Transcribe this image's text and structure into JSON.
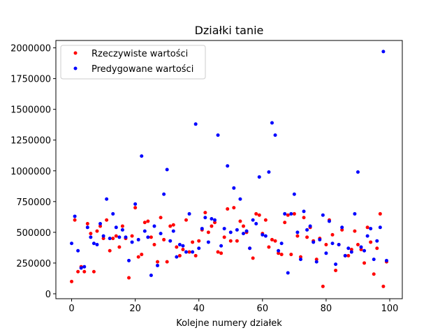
{
  "chart_data": {
    "type": "scatter",
    "title": "Działki tanie",
    "xlabel": "Kolejne numery działek",
    "ylabel": "",
    "xlim": [
      -4.95,
      103.95
    ],
    "ylim": [
      -40000,
      2060000
    ],
    "xticks": [
      0,
      20,
      40,
      60,
      80,
      100
    ],
    "yticks": [
      0,
      250000,
      500000,
      750000,
      1000000,
      1250000,
      1500000,
      1750000,
      2000000
    ],
    "legend_position": "top-left",
    "grid": false,
    "series": [
      {
        "name": "Rzeczywiste wartości",
        "color": "#ff0000",
        "x": [
          0,
          1,
          2,
          3,
          4,
          5,
          6,
          7,
          8,
          9,
          10,
          11,
          12,
          13,
          14,
          15,
          16,
          17,
          18,
          19,
          20,
          21,
          22,
          23,
          24,
          25,
          26,
          27,
          28,
          29,
          30,
          31,
          32,
          33,
          34,
          35,
          36,
          37,
          38,
          39,
          40,
          41,
          42,
          43,
          44,
          45,
          46,
          47,
          48,
          49,
          50,
          51,
          52,
          53,
          54,
          55,
          56,
          57,
          58,
          59,
          60,
          61,
          62,
          63,
          64,
          65,
          66,
          67,
          68,
          69,
          70,
          71,
          72,
          73,
          74,
          75,
          76,
          77,
          78,
          79,
          80,
          81,
          82,
          83,
          84,
          85,
          86,
          87,
          88,
          89,
          90,
          91,
          92,
          93,
          94,
          95,
          96,
          97,
          98,
          99
        ],
        "y": [
          100000,
          600000,
          180000,
          220000,
          180000,
          570000,
          490000,
          180000,
          510000,
          550000,
          450000,
          600000,
          350000,
          450000,
          470000,
          380000,
          550000,
          450000,
          130000,
          470000,
          700000,
          300000,
          320000,
          580000,
          590000,
          460000,
          400000,
          260000,
          620000,
          440000,
          260000,
          550000,
          560000,
          380000,
          310000,
          360000,
          600000,
          340000,
          420000,
          310000,
          430000,
          520000,
          660000,
          500000,
          550000,
          580000,
          340000,
          330000,
          460000,
          690000,
          430000,
          700000,
          430000,
          590000,
          550000,
          500000,
          370000,
          290000,
          650000,
          640000,
          490000,
          600000,
          380000,
          440000,
          430000,
          330000,
          320000,
          580000,
          640000,
          320000,
          650000,
          470000,
          300000,
          620000,
          460000,
          540000,
          430000,
          280000,
          450000,
          60000,
          400000,
          600000,
          480000,
          190000,
          400000,
          520000,
          310000,
          310000,
          360000,
          510000,
          400000,
          360000,
          250000,
          540000,
          420000,
          160000,
          370000,
          650000,
          60000,
          260000
        ]
      },
      {
        "name": "Predygowane wartości",
        "color": "#0000ff",
        "x": [
          0,
          1,
          2,
          3,
          4,
          5,
          6,
          7,
          8,
          9,
          10,
          11,
          12,
          13,
          14,
          15,
          16,
          17,
          18,
          19,
          20,
          21,
          22,
          23,
          24,
          25,
          26,
          27,
          28,
          29,
          30,
          31,
          32,
          33,
          34,
          35,
          36,
          37,
          38,
          39,
          40,
          41,
          42,
          43,
          44,
          45,
          46,
          47,
          48,
          49,
          50,
          51,
          52,
          53,
          54,
          55,
          56,
          57,
          58,
          59,
          60,
          61,
          62,
          63,
          64,
          65,
          66,
          67,
          68,
          69,
          70,
          71,
          72,
          73,
          74,
          75,
          76,
          77,
          78,
          79,
          80,
          81,
          82,
          83,
          84,
          85,
          86,
          87,
          88,
          89,
          90,
          91,
          92,
          93,
          94,
          95,
          96,
          97,
          98,
          99
        ],
        "y": [
          410000,
          630000,
          350000,
          210000,
          220000,
          540000,
          460000,
          410000,
          400000,
          570000,
          470000,
          770000,
          450000,
          650000,
          540000,
          460000,
          520000,
          460000,
          270000,
          420000,
          730000,
          440000,
          1120000,
          510000,
          460000,
          150000,
          550000,
          230000,
          490000,
          810000,
          1010000,
          430000,
          510000,
          300000,
          400000,
          390000,
          340000,
          650000,
          340000,
          1380000,
          370000,
          530000,
          620000,
          420000,
          610000,
          600000,
          1290000,
          390000,
          530000,
          1040000,
          500000,
          860000,
          520000,
          770000,
          490000,
          510000,
          370000,
          600000,
          570000,
          950000,
          480000,
          470000,
          990000,
          1390000,
          1290000,
          350000,
          410000,
          650000,
          170000,
          650000,
          810000,
          500000,
          280000,
          670000,
          520000,
          550000,
          420000,
          260000,
          440000,
          640000,
          330000,
          590000,
          410000,
          240000,
          400000,
          540000,
          310000,
          370000,
          340000,
          650000,
          990000,
          380000,
          350000,
          470000,
          530000,
          280000,
          430000,
          540000,
          1970000,
          270000
        ]
      }
    ]
  }
}
